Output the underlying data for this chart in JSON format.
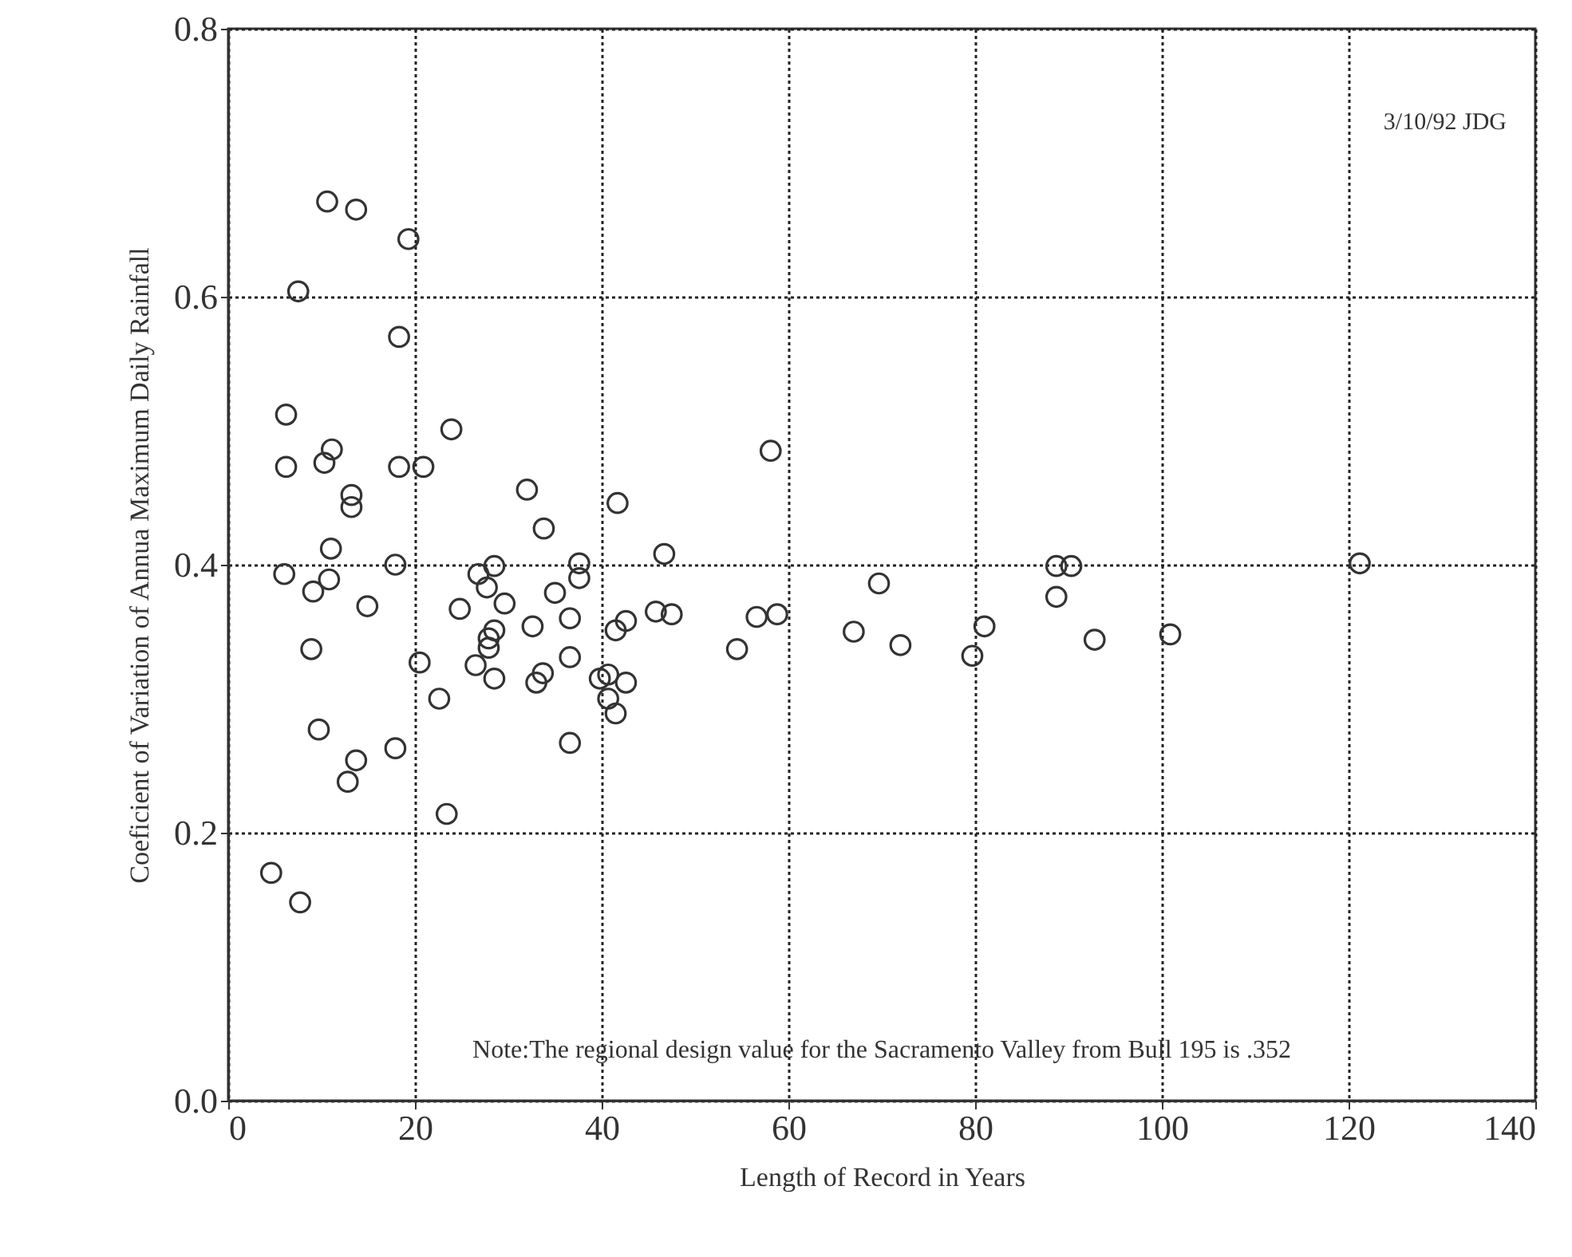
{
  "chart_data": {
    "type": "scatter",
    "xlabel": "Length of Record in Years",
    "ylabel": "Coeficient of Variation of Annua Maximum Daily Rainfall",
    "annotations": [
      "3/10/92 JDG",
      "Note:The regional design value for the Sacramento Valley from Bull 195 is .352"
    ],
    "xlim": [
      0,
      140
    ],
    "xticks": [
      0,
      20,
      40,
      60,
      80,
      100,
      120,
      140
    ],
    "ylim": [
      0,
      0.8
    ],
    "yticks": [
      {
        "value": 0,
        "label": "0.0"
      },
      0.2,
      {
        "value": 0.4,
        "label": "0.4"
      },
      0.6,
      0.8
    ],
    "grid": true,
    "line_style": "dotted",
    "marker": "circle",
    "series": [
      {
        "color": "#333333",
        "x": [
          4.6,
          7.7,
          6.2,
          6.2,
          6.0,
          7.5,
          10.6,
          13.7,
          19.3,
          18.3,
          10.3,
          11.1,
          13.2,
          13.2,
          11.0,
          9.1,
          10.8,
          8.9,
          9.7,
          14.9,
          12.8,
          13.7,
          17.9,
          17.9,
          18.3,
          20.9,
          20.5,
          22.6,
          23.4,
          23.9,
          24.8,
          26.8,
          27.7,
          28.5,
          26.5,
          27.9,
          27.9,
          28.5,
          28.5,
          29.6,
          32.0,
          32.6,
          33.0,
          33.7,
          33.8,
          35.0,
          36.6,
          36.6,
          36.6,
          37.6,
          37.6,
          39.8,
          40.7,
          40.7,
          41.5,
          41.7,
          41.5,
          42.6,
          42.6,
          45.8,
          46.7,
          47.5,
          54.5,
          56.6,
          58.1,
          58.8,
          67.0,
          69.7,
          72.0,
          79.7,
          81.0,
          88.7,
          88.7,
          90.3,
          92.8,
          100.9,
          121.2
        ],
        "values": [
          0.17,
          0.148,
          0.512,
          0.473,
          0.393,
          0.604,
          0.671,
          0.665,
          0.643,
          0.57,
          0.476,
          0.486,
          0.452,
          0.443,
          0.412,
          0.38,
          0.389,
          0.337,
          0.277,
          0.369,
          0.238,
          0.254,
          0.263,
          0.4,
          0.473,
          0.473,
          0.327,
          0.3,
          0.214,
          0.501,
          0.367,
          0.393,
          0.383,
          0.399,
          0.325,
          0.345,
          0.338,
          0.351,
          0.315,
          0.371,
          0.456,
          0.354,
          0.312,
          0.319,
          0.427,
          0.379,
          0.36,
          0.331,
          0.267,
          0.401,
          0.39,
          0.315,
          0.318,
          0.3,
          0.289,
          0.446,
          0.351,
          0.358,
          0.312,
          0.365,
          0.408,
          0.363,
          0.337,
          0.361,
          0.485,
          0.363,
          0.35,
          0.386,
          0.34,
          0.332,
          0.354,
          0.376,
          0.399,
          0.399,
          0.344,
          0.348,
          0.401
        ]
      }
    ]
  }
}
